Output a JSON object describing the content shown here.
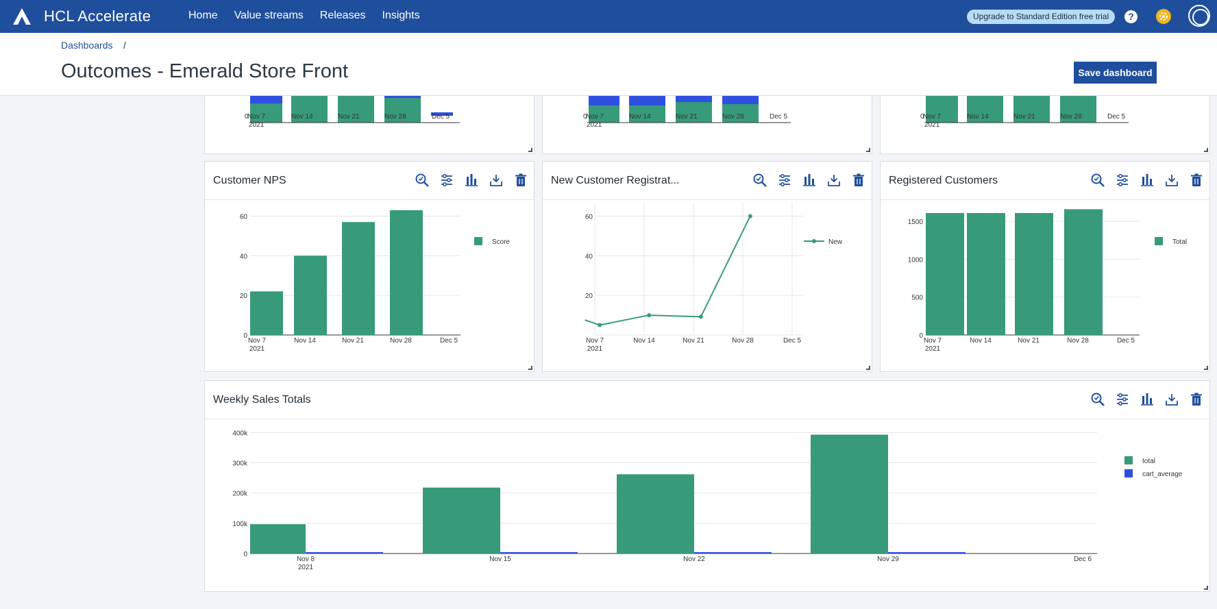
{
  "app": {
    "name": "HCL Accelerate"
  },
  "nav": {
    "items": [
      "Home",
      "Value streams",
      "Releases",
      "Insights"
    ]
  },
  "topbar": {
    "upgrade_label": "Upgrade to Standard Edition free trial",
    "help_label": "?"
  },
  "breadcrumb": {
    "root": "Dashboards",
    "separator": "/"
  },
  "page": {
    "title": "Outcomes - Emerald Store Front",
    "save_label": "Save dashboard"
  },
  "colors": {
    "green": "#379a7b",
    "blue": "#2f4fe0",
    "nav": "#1f4f9c"
  },
  "icons": [
    "zoom-icon",
    "filter-sliders-icon",
    "bar-chart-icon",
    "download-icon",
    "trash-icon"
  ],
  "top_row": {
    "x_labels": [
      "Nov 7",
      "Nov 14",
      "Nov 21",
      "Nov 28",
      "Dec 5"
    ],
    "year_label": "2021",
    "zero_label": "0"
  },
  "cards": {
    "nps": {
      "title": "Customer NPS"
    },
    "registrations": {
      "title": "New Customer Registrat..."
    },
    "registered": {
      "title": "Registered Customers"
    },
    "weekly": {
      "title": "Weekly Sales Totals"
    }
  },
  "chart_data": [
    {
      "type": "bar",
      "title": "Customer NPS",
      "categories": [
        "Nov 7",
        "Nov 14",
        "Nov 21",
        "Nov 28",
        "Dec 5"
      ],
      "x_sublabel": "2021",
      "series": [
        {
          "name": "Score",
          "values": [
            22,
            40,
            57,
            63,
            null
          ]
        }
      ],
      "y_ticks": [
        "0",
        "20",
        "40",
        "60"
      ],
      "ylim": [
        0,
        65
      ],
      "legend": "top-right"
    },
    {
      "type": "line",
      "title": "New Customer Registrat...",
      "categories": [
        "Nov 7",
        "Nov 14",
        "Nov 21",
        "Nov 28",
        "Dec 5"
      ],
      "x_sublabel": "2021",
      "series": [
        {
          "name": "New",
          "points": [
            [
              6.8,
              7.6
            ],
            [
              7.1,
              5
            ],
            [
              8.1,
              10
            ],
            [
              9.15,
              9.2
            ],
            [
              10.15,
              60
            ]
          ]
        }
      ],
      "y_ticks": [
        "20",
        "40",
        "60"
      ],
      "ylim": [
        0,
        65
      ],
      "legend": "top-right"
    },
    {
      "type": "bar",
      "title": "Registered Customers",
      "categories": [
        "Nov 7",
        "Nov 14",
        "Nov 21",
        "Nov 28",
        "Dec 5"
      ],
      "x_sublabel": "2021",
      "series": [
        {
          "name": "Total",
          "values": [
            1610,
            1610,
            1610,
            1660,
            null
          ]
        }
      ],
      "y_ticks": [
        "0",
        "500",
        "1000",
        "1500"
      ],
      "ylim": [
        0,
        1700
      ],
      "legend": "top-right"
    },
    {
      "type": "bar",
      "title": "Weekly Sales Totals",
      "categories": [
        "Nov 8",
        "Nov 15",
        "Nov 22",
        "Nov 29",
        "Dec 6"
      ],
      "x_sublabel": "2021",
      "series": [
        {
          "name": "total",
          "values": [
            97000,
            218000,
            262000,
            393000,
            null
          ]
        },
        {
          "name": "cart_average",
          "values": [
            1500,
            1500,
            1500,
            1500,
            null
          ]
        }
      ],
      "y_ticks": [
        "0",
        "100k",
        "200k",
        "300k",
        "400k"
      ],
      "ylim": [
        0,
        410000
      ],
      "legend": "top-right"
    }
  ]
}
